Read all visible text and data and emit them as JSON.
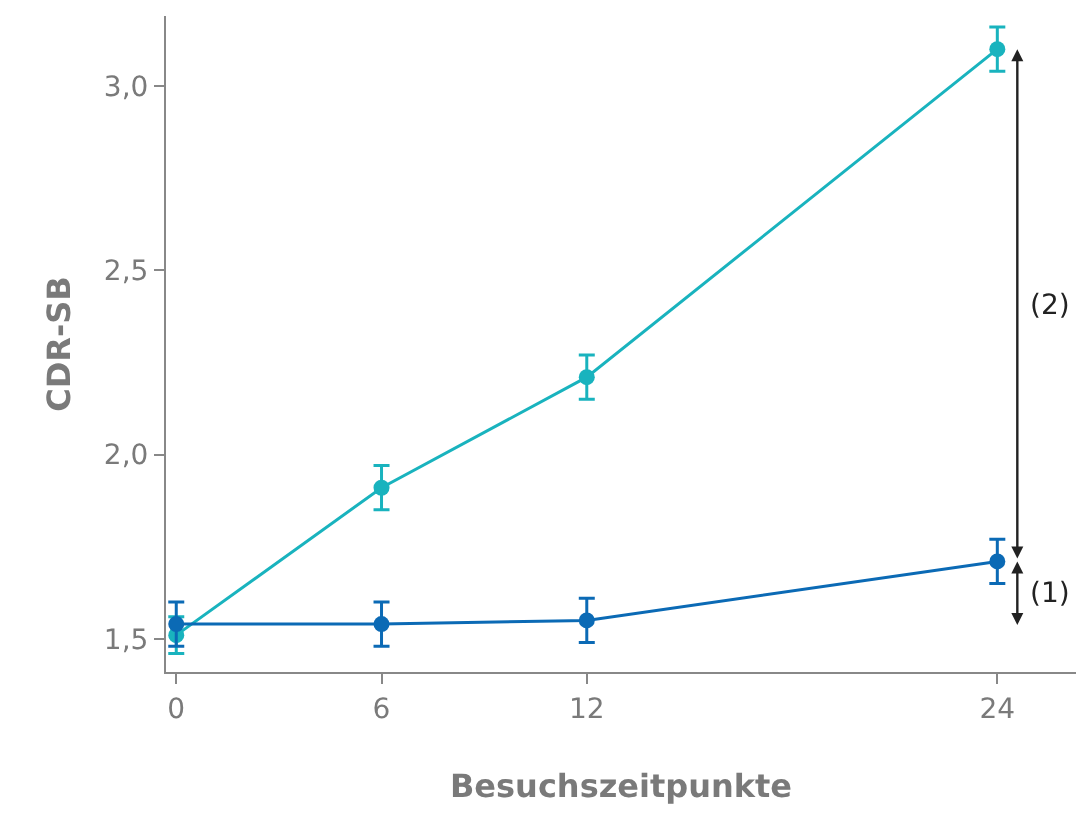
{
  "chart_data": {
    "type": "line",
    "xlabel": "Besuchszeitpunkte",
    "ylabel": "CDR-SB",
    "x": [
      0,
      6,
      12,
      24
    ],
    "series": [
      {
        "color": "#19b3be",
        "values": [
          1.51,
          1.91,
          2.21,
          3.1
        ],
        "errors": [
          0.05,
          0.06,
          0.06,
          0.06
        ]
      },
      {
        "color": "#0b6ab5",
        "values": [
          1.54,
          1.54,
          1.55,
          1.71
        ],
        "errors": [
          0.06,
          0.06,
          0.06,
          0.06
        ]
      }
    ],
    "xlim": [
      -0.3,
      26.3
    ],
    "xticks": [
      0,
      6,
      12,
      24
    ],
    "ylim": [
      1.41,
      3.19
    ],
    "yticks": [
      {
        "value": 1.5,
        "label": "1,5"
      },
      {
        "value": 2.0,
        "label": "2,0"
      },
      {
        "value": 2.5,
        "label": "2,5"
      },
      {
        "value": 3.0,
        "label": "3,0"
      }
    ],
    "annotations": [
      "(2)",
      "(1)"
    ],
    "marker": "circle",
    "line_style": "solid"
  }
}
